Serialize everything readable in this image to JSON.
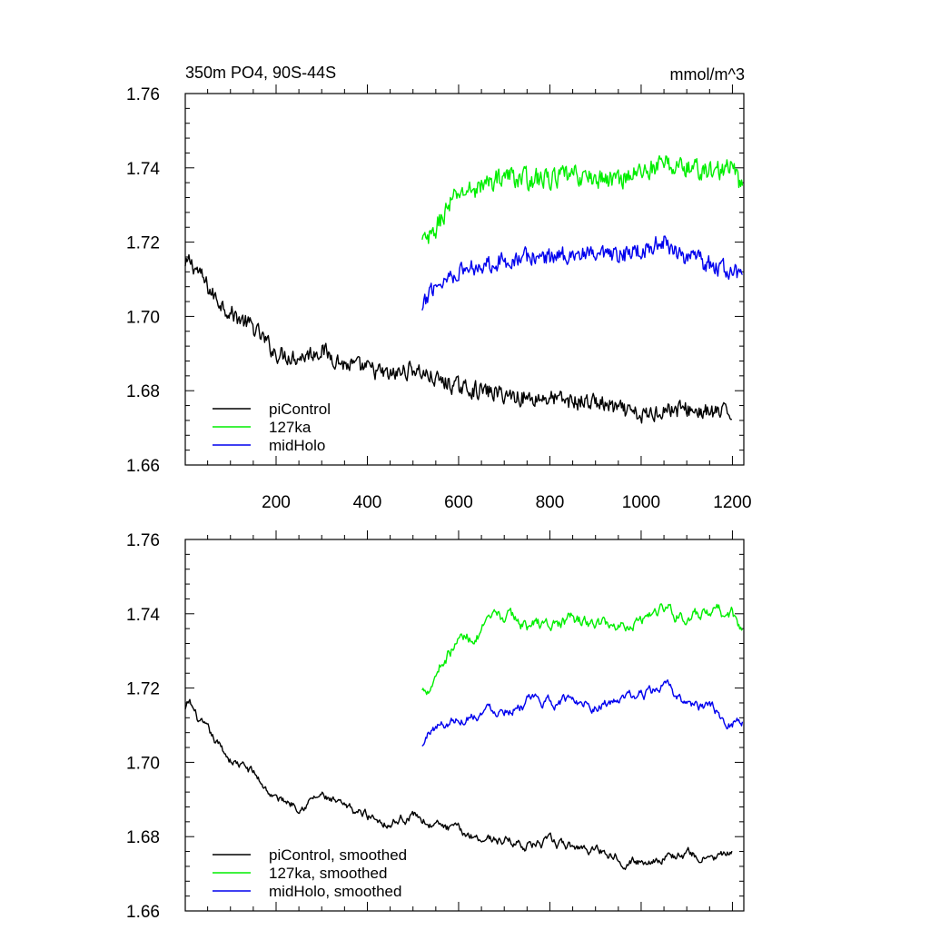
{
  "chart_data": [
    {
      "type": "line",
      "panel": "top",
      "title": "350m PO4, 90S-44S",
      "units": "mmol/m^3",
      "xlim": [
        1,
        1225
      ],
      "ylim": [
        1.66,
        1.76
      ],
      "xticks": [
        200,
        400,
        600,
        800,
        1000,
        1200
      ],
      "xtick_labels": [
        "200",
        "400",
        "600",
        "800",
        "1000",
        "1200"
      ],
      "yticks": [
        1.66,
        1.68,
        1.7,
        1.72,
        1.74,
        1.76
      ],
      "ytick_labels": [
        "1.66",
        "1.68",
        "1.70",
        "1.72",
        "1.74",
        "1.76"
      ],
      "legend_position": "bottom-left",
      "grid": false,
      "series": [
        {
          "name": "piControl",
          "color": "#000000",
          "noise": 0.0032,
          "x": [
            1,
            10,
            30,
            60,
            100,
            150,
            200,
            250,
            300,
            350,
            400,
            450,
            500,
            550,
            600,
            650,
            700,
            750,
            800,
            850,
            900,
            950,
            1000,
            1050,
            1100,
            1150,
            1200
          ],
          "y": [
            1.713,
            1.715,
            1.712,
            1.706,
            1.701,
            1.697,
            1.69,
            1.689,
            1.691,
            1.687,
            1.686,
            1.684,
            1.686,
            1.683,
            1.681,
            1.68,
            1.679,
            1.678,
            1.678,
            1.677,
            1.677,
            1.675,
            1.673,
            1.675,
            1.675,
            1.674,
            1.674
          ]
        },
        {
          "name": "127ka",
          "color": "#00ee00",
          "noise": 0.0038,
          "x": [
            520,
            540,
            560,
            580,
            600,
            650,
            700,
            750,
            800,
            850,
            900,
            950,
            1000,
            1050,
            1100,
            1150,
            1200,
            1222
          ],
          "y": [
            1.72,
            1.721,
            1.726,
            1.73,
            1.733,
            1.735,
            1.738,
            1.737,
            1.737,
            1.738,
            1.737,
            1.737,
            1.739,
            1.741,
            1.74,
            1.739,
            1.74,
            1.734
          ]
        },
        {
          "name": "midHolo",
          "color": "#0000ee",
          "noise": 0.0033,
          "x": [
            520,
            540,
            560,
            580,
            600,
            650,
            700,
            750,
            800,
            850,
            900,
            950,
            1000,
            1050,
            1100,
            1150,
            1200,
            1222
          ],
          "y": [
            1.701,
            1.708,
            1.709,
            1.711,
            1.712,
            1.714,
            1.715,
            1.716,
            1.716,
            1.717,
            1.716,
            1.716,
            1.718,
            1.72,
            1.716,
            1.714,
            1.712,
            1.711
          ]
        }
      ]
    },
    {
      "type": "line",
      "panel": "bottom",
      "xlim": [
        1,
        1225
      ],
      "ylim": [
        1.66,
        1.76
      ],
      "xticks": [
        200,
        400,
        600,
        800,
        1000,
        1200
      ],
      "yticks": [
        1.66,
        1.68,
        1.7,
        1.72,
        1.74,
        1.76
      ],
      "ytick_labels": [
        "1.66",
        "1.68",
        "1.70",
        "1.72",
        "1.74",
        "1.76"
      ],
      "legend_position": "bottom-left",
      "grid": false,
      "series": [
        {
          "name": "piControl, smoothed",
          "color": "#000000",
          "noise": 0.0016,
          "x": [
            1,
            10,
            30,
            60,
            100,
            150,
            200,
            250,
            300,
            350,
            400,
            450,
            500,
            550,
            600,
            650,
            700,
            750,
            800,
            850,
            900,
            950,
            1000,
            1050,
            1100,
            1150,
            1200
          ],
          "y": [
            1.714,
            1.716,
            1.711,
            1.706,
            1.701,
            1.697,
            1.69,
            1.689,
            1.691,
            1.687,
            1.686,
            1.684,
            1.686,
            1.683,
            1.681,
            1.68,
            1.679,
            1.678,
            1.678,
            1.677,
            1.677,
            1.675,
            1.673,
            1.675,
            1.675,
            1.674,
            1.675
          ]
        },
        {
          "name": "127ka, smoothed",
          "color": "#00ee00",
          "noise": 0.0022,
          "x": [
            520,
            540,
            560,
            580,
            600,
            650,
            700,
            750,
            800,
            850,
            900,
            950,
            1000,
            1050,
            1100,
            1150,
            1200,
            1222
          ],
          "y": [
            1.719,
            1.722,
            1.727,
            1.73,
            1.733,
            1.735,
            1.739,
            1.737,
            1.737,
            1.738,
            1.737,
            1.737,
            1.739,
            1.742,
            1.739,
            1.739,
            1.74,
            1.734
          ]
        },
        {
          "name": "midHolo, smoothed",
          "color": "#0000ee",
          "noise": 0.0018,
          "x": [
            520,
            540,
            560,
            580,
            600,
            650,
            700,
            750,
            800,
            850,
            900,
            950,
            1000,
            1050,
            1100,
            1150,
            1200,
            1222
          ],
          "y": [
            1.704,
            1.709,
            1.71,
            1.711,
            1.712,
            1.714,
            1.715,
            1.716,
            1.716,
            1.717,
            1.716,
            1.716,
            1.718,
            1.72,
            1.716,
            1.714,
            1.711,
            1.712
          ]
        }
      ]
    }
  ]
}
